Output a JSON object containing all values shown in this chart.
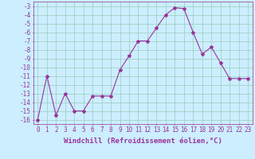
{
  "x": [
    0,
    1,
    2,
    3,
    4,
    5,
    6,
    7,
    8,
    9,
    10,
    11,
    12,
    13,
    14,
    15,
    16,
    17,
    18,
    19,
    20,
    21,
    22,
    23
  ],
  "y": [
    -16,
    -11,
    -15.5,
    -13,
    -15,
    -15,
    -13.3,
    -13.3,
    -13.3,
    -10.3,
    -8.7,
    -7.0,
    -7.0,
    -5.5,
    -4.0,
    -3.2,
    -3.3,
    -6.0,
    -8.5,
    -7.7,
    -9.5,
    -11.3,
    -11.3,
    -11.3
  ],
  "line_color": "#993399",
  "marker": "*",
  "marker_size": 3,
  "bg_color": "#cceeff",
  "grid_color": "#99ccbb",
  "xlabel": "Windchill (Refroidissement éolien,°C)",
  "xlabel_fontsize": 6.5,
  "tick_fontsize": 5.5,
  "ylim": [
    -16.5,
    -2.5
  ],
  "xlim": [
    -0.5,
    23.5
  ],
  "yticks": [
    -3,
    -4,
    -5,
    -6,
    -7,
    -8,
    -9,
    -10,
    -11,
    -12,
    -13,
    -14,
    -15,
    -16
  ],
  "xticks": [
    0,
    1,
    2,
    3,
    4,
    5,
    6,
    7,
    8,
    9,
    10,
    11,
    12,
    13,
    14,
    15,
    16,
    17,
    18,
    19,
    20,
    21,
    22,
    23
  ]
}
